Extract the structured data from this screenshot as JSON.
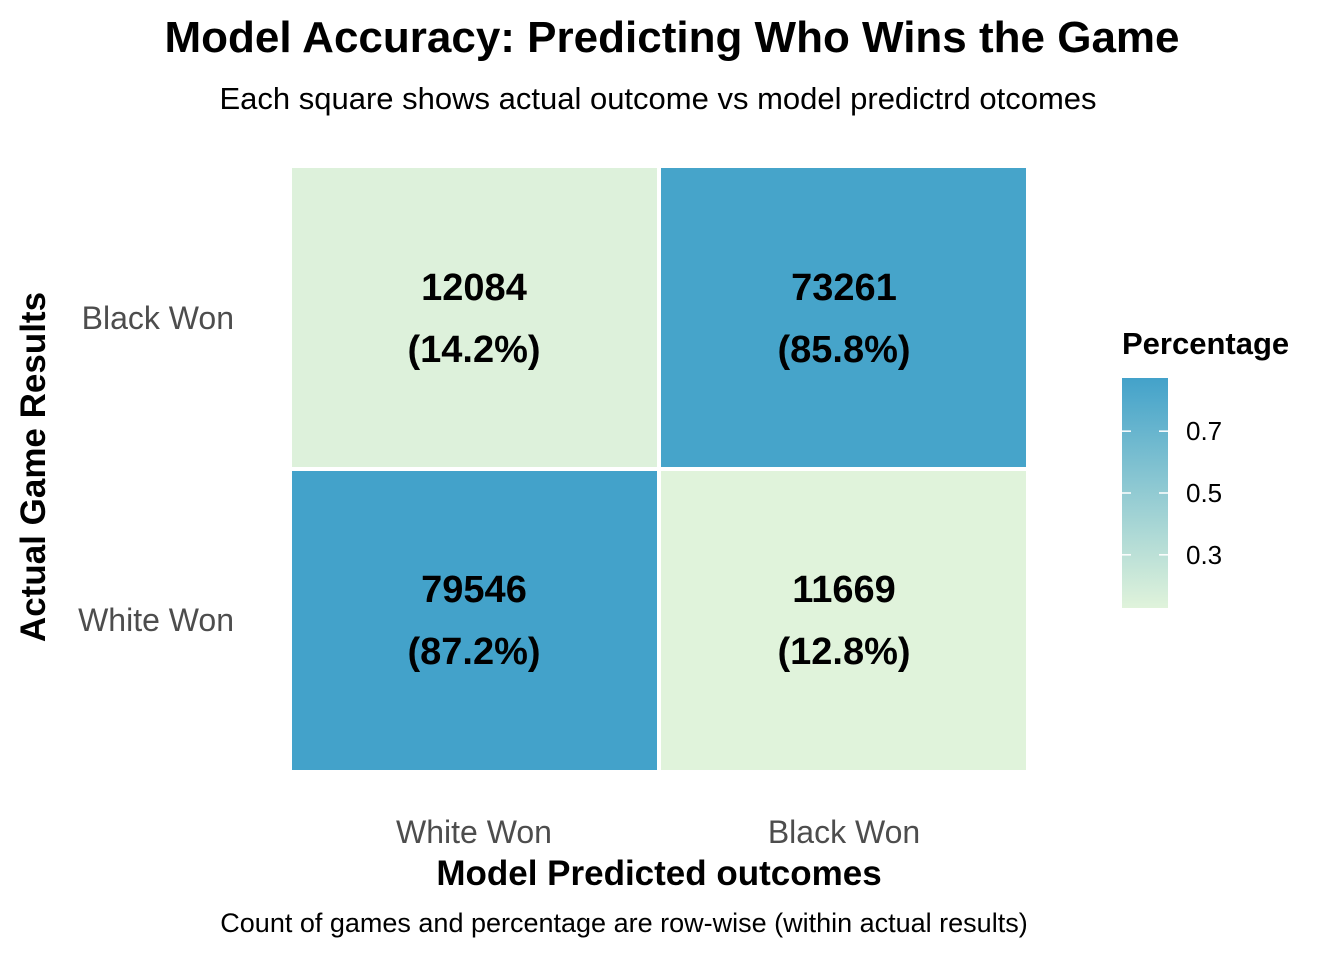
{
  "chart_data": {
    "type": "heatmap",
    "title": "Model Accuracy: Predicting Who Wins the Game",
    "subtitle": "Each square shows actual outcome vs model predictrd otcomes",
    "caption": "Count of games and percentage are row-wise (within actual results)",
    "xlabel": "Model Predicted outcomes",
    "ylabel": "Actual Game Results",
    "x_categories": [
      "White Won",
      "Black Won"
    ],
    "y_categories": [
      "Black Won",
      "White Won"
    ],
    "cells": [
      {
        "actual": "Black Won",
        "predicted": "White Won",
        "count": 12084,
        "percent": 0.142,
        "count_label": "12084",
        "percent_label": "(14.2%)"
      },
      {
        "actual": "Black Won",
        "predicted": "Black Won",
        "count": 73261,
        "percent": 0.858,
        "count_label": "73261",
        "percent_label": "(85.8%)"
      },
      {
        "actual": "White Won",
        "predicted": "White Won",
        "count": 79546,
        "percent": 0.872,
        "count_label": "79546",
        "percent_label": "(87.2%)"
      },
      {
        "actual": "White Won",
        "predicted": "Black Won",
        "count": 11669,
        "percent": 0.128,
        "count_label": "11669",
        "percent_label": "(12.8%)"
      }
    ],
    "legend": {
      "title": "Percentage",
      "placement": "right",
      "range": [
        0.128,
        0.872
      ],
      "ticks": [
        0.3,
        0.5,
        0.7
      ],
      "tick_labels": [
        "0.3",
        "0.5",
        "0.7"
      ],
      "low_color": "#e0f3db",
      "high_color": "#43a2ca"
    },
    "grid": false
  }
}
